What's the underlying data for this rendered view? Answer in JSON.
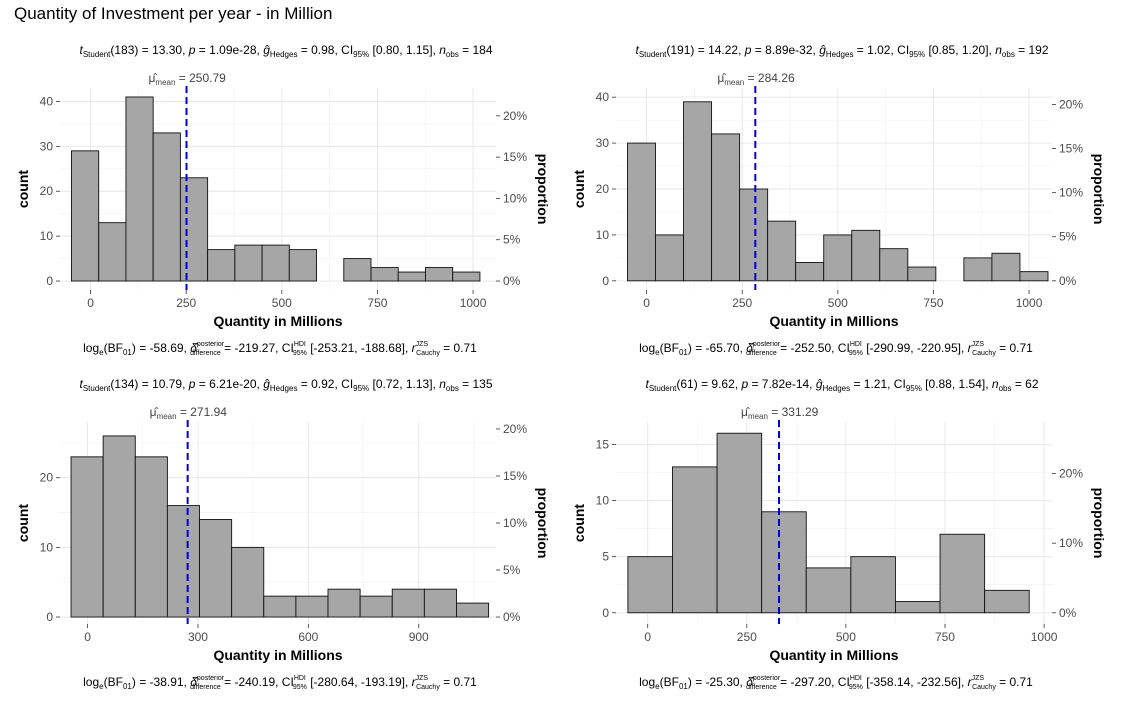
{
  "page": {
    "title": "Quantity of Investment per year - in Million"
  },
  "chart_data": [
    {
      "type": "bar",
      "subtitle": {
        "df": "183",
        "t": "13.30",
        "p": "1.09e-28",
        "g": "0.98",
        "ci": "[0.80, 1.15]",
        "n": "184"
      },
      "caption": {
        "logbf": "-58.69",
        "delta": "-219.27",
        "ci": "[-253.21, -188.68]",
        "r": "0.71"
      },
      "xlabel": "Quantity in Millions",
      "ylabel": "count",
      "y2label": "proportion",
      "bins": {
        "start": -50,
        "width": 71.2,
        "counts": [
          29,
          13,
          41,
          33,
          23,
          7,
          8,
          8,
          7,
          0,
          5,
          3,
          2,
          3,
          2
        ]
      },
      "xlim": [
        -80,
        1060
      ],
      "ylim": [
        -2,
        43
      ],
      "xticks": [
        0,
        250,
        500,
        750,
        1000
      ],
      "xtick_labels": [
        "0",
        "250",
        "500",
        "750",
        "1000"
      ],
      "yticks": [
        0,
        10,
        20,
        30,
        40
      ],
      "ytick_labels": [
        "0",
        "10",
        "20",
        "30",
        "40"
      ],
      "ptick_labels": [
        "0%",
        "5%",
        "10%",
        "15%",
        "20%"
      ],
      "mean": 250.79,
      "mean_label": "250.79"
    },
    {
      "type": "bar",
      "subtitle": {
        "df": "191",
        "t": "14.22",
        "p": "8.89e-32",
        "g": "1.02",
        "ci": "[0.85, 1.20]",
        "n": "192"
      },
      "caption": {
        "logbf": "-65.70",
        "delta": "-252.50",
        "ci": "[-290.99, -220.95]",
        "r": "0.71"
      },
      "xlabel": "Quantity in Millions",
      "ylabel": "count",
      "y2label": "proportion",
      "bins": {
        "start": -50,
        "width": 73.3,
        "counts": [
          30,
          10,
          39,
          32,
          20,
          13,
          4,
          10,
          11,
          7,
          3,
          0,
          5,
          6,
          2
        ]
      },
      "xlim": [
        -80,
        1060
      ],
      "ylim": [
        -2,
        42
      ],
      "xticks": [
        0,
        250,
        500,
        750,
        1000
      ],
      "xtick_labels": [
        "0",
        "250",
        "500",
        "750",
        "1000"
      ],
      "yticks": [
        0,
        10,
        20,
        30,
        40
      ],
      "ytick_labels": [
        "0",
        "10",
        "20",
        "30",
        "40"
      ],
      "ptick_labels": [
        "0%",
        "5%",
        "10%",
        "15%",
        "20%"
      ],
      "mean": 284.26,
      "mean_label": "284.26"
    },
    {
      "type": "bar",
      "subtitle": {
        "df": "134",
        "t": "10.79",
        "p": "6.21e-20",
        "g": "0.92",
        "ci": "[0.72, 1.13]",
        "n": "135"
      },
      "caption": {
        "logbf": "-38.91",
        "delta": "-240.19",
        "ci": "[-280.64, -193.19]",
        "r": "0.71"
      },
      "xlabel": "Quantity in Millions",
      "ylabel": "count",
      "y2label": "proportion",
      "bins": {
        "start": -45,
        "width": 87.3,
        "counts": [
          23,
          26,
          23,
          16,
          14,
          10,
          3,
          3,
          4,
          3,
          4,
          4,
          2
        ]
      },
      "xlim": [
        -75,
        1110
      ],
      "ylim": [
        -1,
        28
      ],
      "xticks": [
        0,
        300,
        600,
        900
      ],
      "xtick_labels": [
        "0",
        "300",
        "600",
        "900"
      ],
      "yticks": [
        0,
        10,
        20
      ],
      "ytick_labels": [
        "0",
        "10",
        "20"
      ],
      "ptick_labels": [
        "0%",
        "5%",
        "10%",
        "15%",
        "20%"
      ],
      "mean": 271.94,
      "mean_label": "271.94"
    },
    {
      "type": "bar",
      "subtitle": {
        "df": "61",
        "t": "9.62",
        "p": "7.82e-14",
        "g": "1.21",
        "ci": "[0.88, 1.54]",
        "n": "62"
      },
      "caption": {
        "logbf": "-25.30",
        "delta": "-297.20",
        "ci": "[-358.14, -232.56]",
        "r": "0.71"
      },
      "xlabel": "Quantity in Millions",
      "ylabel": "count",
      "y2label": "proportion",
      "bins": {
        "start": -50,
        "width": 112.5,
        "counts": [
          5,
          13,
          16,
          9,
          4,
          5,
          1,
          7,
          2
        ]
      },
      "xlim": [
        -80,
        1020
      ],
      "ylim": [
        -1,
        17
      ],
      "xticks": [
        0,
        250,
        500,
        750,
        1000
      ],
      "xtick_labels": [
        "0",
        "250",
        "500",
        "750",
        "1000"
      ],
      "yticks": [
        0,
        5,
        10,
        15
      ],
      "ytick_labels": [
        "0",
        "5",
        "10",
        "15"
      ],
      "ptick_labels": [
        "0%",
        "10%",
        "20%"
      ],
      "mean": 331.29,
      "mean_label": "331.29"
    }
  ]
}
